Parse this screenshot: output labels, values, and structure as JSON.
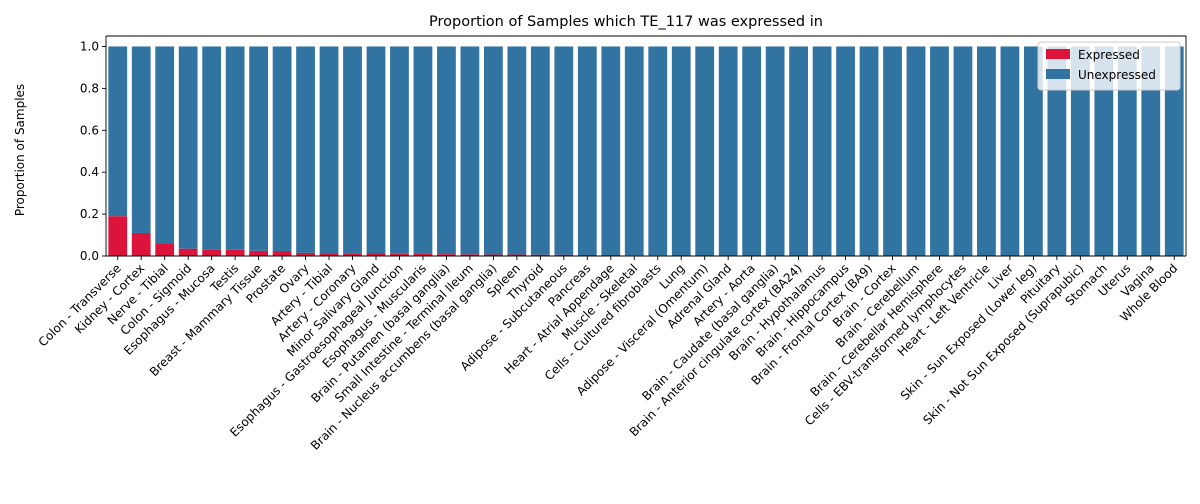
{
  "chart_data": {
    "type": "bar",
    "stacked": true,
    "title": "Proportion of Samples which TE_117 was expressed in",
    "xlabel": "",
    "ylabel": "Proportion of Samples",
    "ylim": [
      0,
      1.05
    ],
    "yticks": [
      "0.0",
      "0.2",
      "0.4",
      "0.6",
      "0.8",
      "1.0"
    ],
    "legend_position": "top-right",
    "grid": false,
    "categories": [
      "Colon - Transverse",
      "Kidney - Cortex",
      "Nerve - Tibial",
      "Colon - Sigmoid",
      "Esophagus - Mucosa",
      "Testis",
      "Breast - Mammary Tissue",
      "Prostate",
      "Ovary",
      "Artery - Tibial",
      "Artery - Coronary",
      "Minor Salivary Gland",
      "Esophagus - Gastroesophageal Junction",
      "Esophagus - Muscularis",
      "Brain - Putamen (basal ganglia)",
      "Small Intestine - Terminal Ileum",
      "Brain - Nucleus accumbens (basal ganglia)",
      "Spleen",
      "Thyroid",
      "Adipose - Subcutaneous",
      "Pancreas",
      "Heart - Atrial Appendage",
      "Muscle - Skeletal",
      "Cells - Cultured fibroblasts",
      "Lung",
      "Adipose - Visceral (Omentum)",
      "Adrenal Gland",
      "Artery - Aorta",
      "Brain - Caudate (basal ganglia)",
      "Brain - Anterior cingulate cortex (BA24)",
      "Brain - Hypothalamus",
      "Brain - Hippocampus",
      "Brain - Frontal Cortex (BA9)",
      "Brain - Cortex",
      "Brain - Cerebellum",
      "Brain - Cerebellar Hemisphere",
      "Cells - EBV-transformed lymphocytes",
      "Heart - Left Ventricle",
      "Liver",
      "Skin - Sun Exposed (Lower leg)",
      "Pituitary",
      "Skin - Not Sun Exposed (Suprapubic)",
      "Stomach",
      "Uterus",
      "Vagina",
      "Whole Blood"
    ],
    "series": [
      {
        "name": "Expressed",
        "color": "#dc143c",
        "values": [
          0.19,
          0.11,
          0.06,
          0.035,
          0.032,
          0.03,
          0.025,
          0.024,
          0.015,
          0.014,
          0.013,
          0.012,
          0.011,
          0.01,
          0.009,
          0.008,
          0.007,
          0.007,
          0.006,
          0.006,
          0.005,
          0.005,
          0.004,
          0.004,
          0,
          0,
          0,
          0,
          0,
          0,
          0,
          0,
          0,
          0,
          0,
          0,
          0,
          0,
          0,
          0,
          0,
          0,
          0,
          0,
          0,
          0
        ]
      },
      {
        "name": "Unexpressed",
        "color": "#3274a1",
        "values": [
          0.81,
          0.89,
          0.94,
          0.965,
          0.968,
          0.97,
          0.975,
          0.976,
          0.985,
          0.986,
          0.987,
          0.988,
          0.989,
          0.99,
          0.991,
          0.992,
          0.993,
          0.993,
          0.994,
          0.994,
          0.995,
          0.995,
          0.996,
          0.996,
          1,
          1,
          1,
          1,
          1,
          1,
          1,
          1,
          1,
          1,
          1,
          1,
          1,
          1,
          1,
          1,
          1,
          1,
          1,
          1,
          1,
          1
        ]
      }
    ]
  }
}
